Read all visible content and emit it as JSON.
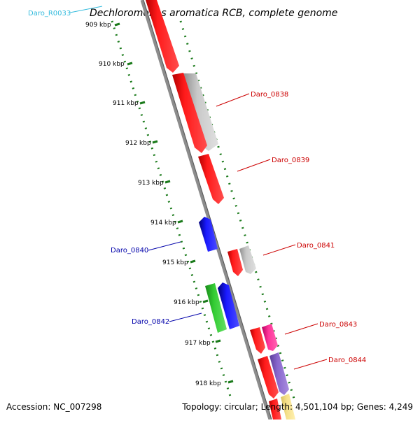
{
  "title": "Dechloromonas aromatica RCB, complete genome",
  "footer": {
    "accession": "Accession: NC_007298",
    "summary": "Topology: circular; Length: 4,501,104 bp; Genes: 4,249"
  },
  "ticks": [
    "909 kbp",
    "910 kbp",
    "911 kbp",
    "912 kbp",
    "913 kbp",
    "914 kbp",
    "915 kbp",
    "916 kbp",
    "917 kbp",
    "918 kbp"
  ],
  "gene_labels": [
    {
      "id": "rna-label",
      "text": "Daro_R0033",
      "color": "#33bbdd"
    },
    {
      "id": "label-0838",
      "text": "Daro_0838",
      "color": "#cc0000"
    },
    {
      "id": "label-0839",
      "text": "Daro_0839",
      "color": "#cc0000"
    },
    {
      "id": "label-0840",
      "text": "Daro_0840",
      "color": "#0000aa"
    },
    {
      "id": "label-0841",
      "text": "Daro_0841",
      "color": "#cc0000"
    },
    {
      "id": "label-0842",
      "text": "Daro_0842",
      "color": "#0000aa"
    },
    {
      "id": "label-0843",
      "text": "Daro_0843",
      "color": "#cc0000"
    },
    {
      "id": "label-0844",
      "text": "Daro_0844",
      "color": "#cc0000"
    }
  ],
  "colors": {
    "backbone": "#8c8c8c",
    "tick_dots": "#1a7a1a",
    "gene_red": "#ff1a1a",
    "gene_gray": "#bdbdbd",
    "gene_blue": "#1a1aff",
    "gene_green": "#33cc33",
    "gene_pink": "#ff3399",
    "gene_purple": "#8866cc",
    "gene_yellow": "#f5e08a"
  }
}
